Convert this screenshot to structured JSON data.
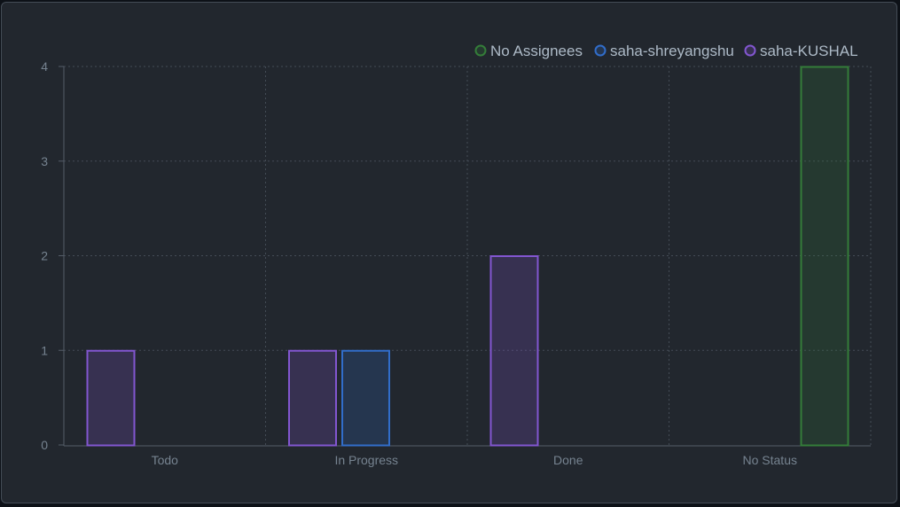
{
  "chart_data": {
    "type": "bar",
    "categories": [
      "Todo",
      "In Progress",
      "Done",
      "No Status"
    ],
    "series": [
      {
        "name": "No Assignees",
        "color": "#347d39",
        "values": [
          0,
          0,
          0,
          4
        ]
      },
      {
        "name": "saha-shreyangshu",
        "color": "#316dca",
        "values": [
          0,
          1,
          0,
          0
        ]
      },
      {
        "name": "saha-KUSHAL",
        "color": "#8256d0",
        "values": [
          1,
          1,
          2,
          0
        ]
      }
    ],
    "ylim": [
      0,
      4
    ],
    "yticks": [
      0,
      1,
      2,
      3,
      4
    ],
    "grid": true,
    "legend": "top-right"
  }
}
